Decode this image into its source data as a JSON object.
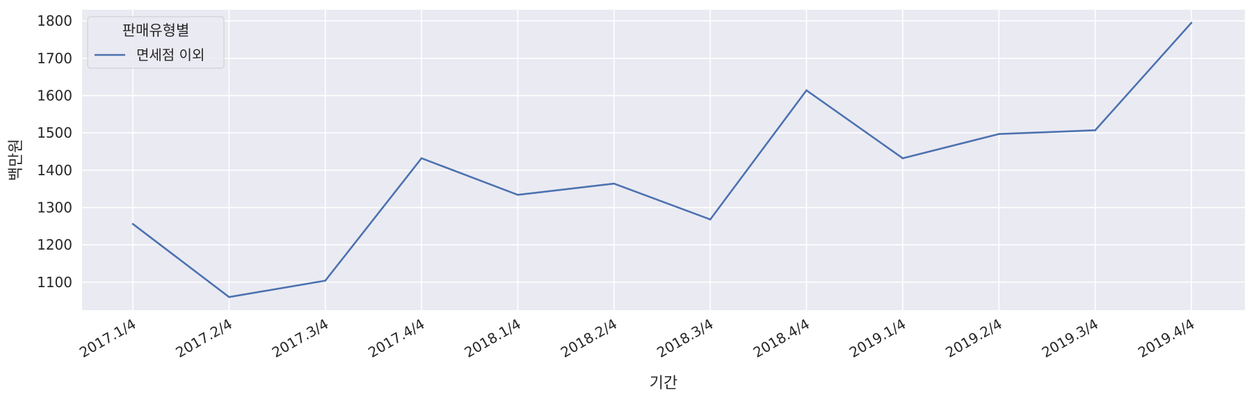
{
  "colors": {
    "plot_background": "#eaeaf2",
    "grid": "#ffffff",
    "series_line": "#4c72b0",
    "text": "#262626"
  },
  "chart_data": {
    "type": "line",
    "title": "",
    "xlabel": "기간",
    "ylabel": "백만원",
    "categories": [
      "2017.1/4",
      "2017.2/4",
      "2017.3/4",
      "2017.4/4",
      "2018.1/4",
      "2018.2/4",
      "2018.3/4",
      "2018.4/4",
      "2019.1/4",
      "2019.2/4",
      "2019.3/4",
      "2019.4/4"
    ],
    "series": [
      {
        "name": "면세점 이외",
        "values": [
          1256,
          1060,
          1104,
          1432,
          1334,
          1364,
          1268,
          1614,
          1432,
          1497,
          1507,
          1795
        ]
      }
    ],
    "ylim": [
      1025,
      1830
    ],
    "yticks": [
      1100,
      1200,
      1300,
      1400,
      1500,
      1600,
      1700,
      1800
    ],
    "ytick_labels": [
      "1100",
      "1200",
      "1300",
      "1400",
      "1500",
      "1600",
      "1700",
      "1800"
    ],
    "grid": true,
    "legend": {
      "title": "판매유형별",
      "placement": "upper-left"
    }
  }
}
